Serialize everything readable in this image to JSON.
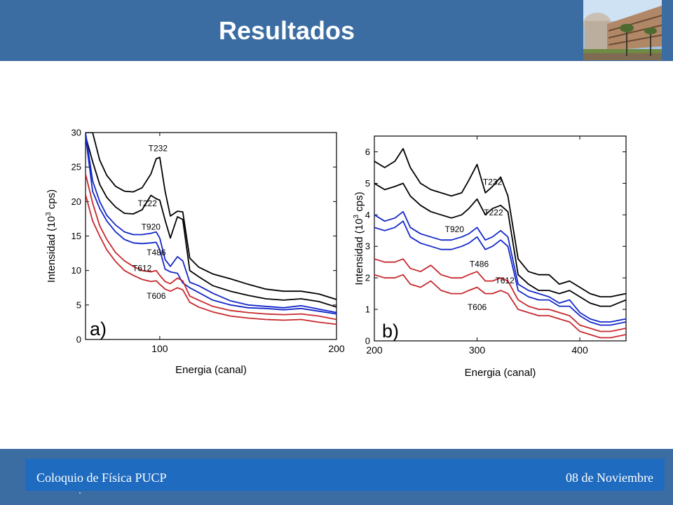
{
  "header": {
    "title": "Resultados",
    "photo_icon": "building-photo-icon"
  },
  "footer": {
    "left": "Coloquio de Física PUCP",
    "right": "08 de Noviembre"
  },
  "colors": {
    "header": "#3b6da3",
    "footer_bar": "#1f6bbf",
    "black_series": "#000000",
    "blue_series": "#1428c8",
    "red_series": "#c8282d"
  },
  "chart_data": [
    {
      "type": "line",
      "panel_label": "a)",
      "xlabel": "Energia (canal)",
      "ylabel_main": "Intensidad (10",
      "ylabel_sup": "3",
      "ylabel_end": " cps)",
      "xlim": [
        58,
        200
      ],
      "ylim": [
        0,
        30
      ],
      "xticks": [
        100,
        200
      ],
      "xtick_labels": [
        "100",
        "200"
      ],
      "yticks": [
        0,
        5,
        10,
        15,
        20,
        25,
        30
      ],
      "ytick_labels": [
        "0",
        "5",
        "10",
        "15",
        "20",
        "25",
        "30"
      ],
      "grid": false,
      "series": [
        {
          "name": "T232",
          "color": "#000000",
          "x": [
            58,
            62,
            66,
            70,
            75,
            80,
            85,
            90,
            95,
            98,
            100,
            103,
            106,
            110,
            113,
            117,
            122,
            130,
            140,
            150,
            160,
            170,
            180,
            190,
            200
          ],
          "y": [
            30,
            30,
            26,
            23.8,
            22.2,
            21.5,
            21.4,
            22,
            24,
            26.2,
            26.4,
            21.5,
            17.9,
            18.6,
            18.5,
            11.8,
            10.5,
            9.5,
            8.8,
            8,
            7.3,
            7,
            7,
            6.6,
            5.8
          ]
        },
        {
          "name": "T222",
          "color": "#000000",
          "x": [
            58,
            62,
            66,
            70,
            75,
            80,
            85,
            90,
            95,
            98,
            100,
            103,
            106,
            110,
            113,
            117,
            122,
            130,
            140,
            150,
            160,
            170,
            180,
            190,
            200
          ],
          "y": [
            29.5,
            25.8,
            22.5,
            20.6,
            19.2,
            18.3,
            18.2,
            18.8,
            20.9,
            20.4,
            20.2,
            17.3,
            14.7,
            17.8,
            17.4,
            10,
            9.1,
            7.8,
            7,
            6.4,
            5.9,
            5.7,
            5.9,
            5.5,
            4.7
          ]
        },
        {
          "name": "T920",
          "color": "#1428c8",
          "x": [
            58,
            62,
            66,
            70,
            75,
            80,
            85,
            90,
            95,
            98,
            100,
            103,
            106,
            110,
            113,
            117,
            122,
            130,
            140,
            150,
            160,
            170,
            180,
            190,
            200
          ],
          "y": [
            30,
            23,
            20,
            18,
            16.6,
            15.6,
            15.2,
            15.2,
            15.4,
            15.6,
            14.7,
            11.6,
            10.6,
            12,
            11.4,
            8.3,
            7.8,
            6.7,
            5.6,
            5,
            4.8,
            4.6,
            4.9,
            4.4,
            3.9
          ]
        },
        {
          "name": "T486",
          "color": "#1428c8",
          "x": [
            58,
            62,
            66,
            70,
            75,
            80,
            85,
            90,
            95,
            98,
            100,
            103,
            106,
            110,
            113,
            117,
            122,
            130,
            140,
            150,
            160,
            170,
            180,
            190,
            200
          ],
          "y": [
            29.5,
            21.5,
            19,
            17.2,
            15.6,
            14.5,
            14,
            13.9,
            14,
            14.1,
            13,
            10.2,
            9.8,
            9.6,
            8.2,
            7.5,
            6.8,
            5.7,
            5,
            4.6,
            4.5,
            4.3,
            4.5,
            4.1,
            3.7
          ]
        },
        {
          "name": "T612",
          "color": "#c8282d",
          "x": [
            58,
            62,
            66,
            70,
            75,
            80,
            85,
            90,
            95,
            98,
            100,
            103,
            106,
            110,
            113,
            117,
            122,
            130,
            140,
            150,
            160,
            170,
            180,
            190,
            200
          ],
          "y": [
            24,
            19.8,
            16.5,
            14.5,
            12.6,
            11.4,
            10.6,
            10,
            9.8,
            10,
            9.3,
            8.4,
            8.1,
            8.9,
            8.5,
            6.3,
            5.7,
            4.8,
            4.2,
            3.9,
            3.7,
            3.6,
            3.7,
            3.4,
            2.9
          ]
        },
        {
          "name": "T606",
          "color": "#c8282d",
          "x": [
            58,
            62,
            66,
            70,
            75,
            80,
            85,
            90,
            95,
            98,
            100,
            103,
            106,
            110,
            113,
            117,
            122,
            130,
            140,
            150,
            160,
            170,
            180,
            190,
            200
          ],
          "y": [
            21,
            17.2,
            15,
            13,
            11.3,
            10,
            9.3,
            8.7,
            8.4,
            8.5,
            8,
            7.3,
            7,
            7.5,
            7.2,
            5.4,
            4.7,
            4,
            3.4,
            3.1,
            2.9,
            2.8,
            2.9,
            2.5,
            2.2
          ]
        }
      ],
      "annotations": [
        {
          "text": "T232",
          "x": 99,
          "y": 27.3
        },
        {
          "text": "T222",
          "x": 93,
          "y": 19.3
        },
        {
          "text": "T920",
          "x": 95,
          "y": 15.9
        },
        {
          "text": "T486",
          "x": 98,
          "y": 12.2
        },
        {
          "text": "T612",
          "x": 90,
          "y": 9.9
        },
        {
          "text": "T606",
          "x": 98,
          "y": 5.9
        }
      ]
    },
    {
      "type": "line",
      "panel_label": "b)",
      "xlabel": "Energia (canal)",
      "ylabel_main": "Intensidad (10",
      "ylabel_sup": "3",
      "ylabel_end": " cps)",
      "xlim": [
        200,
        445
      ],
      "ylim": [
        0,
        6.5
      ],
      "xticks": [
        200,
        300,
        400
      ],
      "xtick_labels": [
        "200",
        "300",
        "400"
      ],
      "yticks": [
        0,
        1,
        2,
        3,
        4,
        5,
        6
      ],
      "ytick_labels": [
        "0",
        "1",
        "2",
        "3",
        "4",
        "5",
        "6"
      ],
      "grid": false,
      "series": [
        {
          "name": "T232",
          "color": "#000000",
          "x": [
            200,
            210,
            220,
            228,
            235,
            245,
            255,
            265,
            275,
            285,
            292,
            300,
            308,
            315,
            323,
            330,
            340,
            350,
            360,
            370,
            380,
            390,
            400,
            410,
            420,
            430,
            445
          ],
          "y": [
            5.7,
            5.5,
            5.7,
            6.1,
            5.5,
            5,
            4.8,
            4.7,
            4.6,
            4.7,
            5.1,
            5.6,
            4.7,
            4.9,
            5.2,
            4.6,
            2.6,
            2.2,
            2.1,
            2.1,
            1.8,
            1.9,
            1.7,
            1.5,
            1.4,
            1.4,
            1.5
          ]
        },
        {
          "name": "T222",
          "color": "#000000",
          "x": [
            200,
            210,
            220,
            228,
            235,
            245,
            255,
            265,
            275,
            285,
            292,
            300,
            308,
            315,
            323,
            330,
            340,
            350,
            360,
            370,
            380,
            390,
            400,
            410,
            420,
            430,
            445
          ],
          "y": [
            5,
            4.8,
            4.9,
            5,
            4.6,
            4.3,
            4.1,
            4,
            3.9,
            4,
            4.2,
            4.5,
            4,
            4.2,
            4.3,
            4.1,
            2.1,
            1.8,
            1.6,
            1.6,
            1.5,
            1.6,
            1.4,
            1.2,
            1.1,
            1.1,
            1.3
          ]
        },
        {
          "name": "T920",
          "color": "#1428c8",
          "x": [
            200,
            210,
            220,
            228,
            235,
            245,
            255,
            265,
            275,
            285,
            292,
            300,
            308,
            315,
            323,
            330,
            340,
            350,
            360,
            370,
            380,
            390,
            400,
            410,
            420,
            430,
            445
          ],
          "y": [
            4,
            3.8,
            3.9,
            4.1,
            3.6,
            3.4,
            3.3,
            3.2,
            3.2,
            3.3,
            3.4,
            3.6,
            3.2,
            3.3,
            3.5,
            3.3,
            1.8,
            1.6,
            1.5,
            1.4,
            1.2,
            1.3,
            0.9,
            0.7,
            0.6,
            0.6,
            0.7
          ]
        },
        {
          "name": "T486",
          "color": "#1428c8",
          "x": [
            200,
            210,
            220,
            228,
            235,
            245,
            255,
            265,
            275,
            285,
            292,
            300,
            308,
            315,
            323,
            330,
            340,
            350,
            360,
            370,
            380,
            390,
            400,
            410,
            420,
            430,
            445
          ],
          "y": [
            3.6,
            3.5,
            3.6,
            3.8,
            3.3,
            3.1,
            3,
            2.9,
            2.9,
            3,
            3.1,
            3.3,
            2.9,
            3,
            3.2,
            3,
            1.6,
            1.4,
            1.3,
            1.3,
            1.1,
            1.1,
            0.8,
            0.6,
            0.5,
            0.5,
            0.6
          ]
        },
        {
          "name": "T612",
          "color": "#c8282d",
          "x": [
            200,
            210,
            220,
            228,
            235,
            245,
            255,
            265,
            275,
            285,
            292,
            300,
            308,
            315,
            323,
            330,
            340,
            350,
            360,
            370,
            380,
            390,
            400,
            410,
            420,
            430,
            445
          ],
          "y": [
            2.6,
            2.5,
            2.5,
            2.6,
            2.3,
            2.2,
            2.4,
            2.1,
            2,
            2,
            2.1,
            2.2,
            1.9,
            1.9,
            2,
            1.9,
            1.3,
            1.1,
            1,
            1,
            0.9,
            0.8,
            0.5,
            0.4,
            0.3,
            0.3,
            0.4
          ]
        },
        {
          "name": "T606",
          "color": "#c8282d",
          "x": [
            200,
            210,
            220,
            228,
            235,
            245,
            255,
            265,
            275,
            285,
            292,
            300,
            308,
            315,
            323,
            330,
            340,
            350,
            360,
            370,
            380,
            390,
            400,
            410,
            420,
            430,
            445
          ],
          "y": [
            2.1,
            2,
            2,
            2.1,
            1.8,
            1.7,
            1.9,
            1.6,
            1.5,
            1.5,
            1.6,
            1.7,
            1.5,
            1.5,
            1.6,
            1.5,
            1,
            0.9,
            0.8,
            0.8,
            0.7,
            0.6,
            0.3,
            0.2,
            0.1,
            0.1,
            0.2
          ]
        }
      ],
      "annotations": [
        {
          "text": "T232",
          "x": 315,
          "y": 4.95
        },
        {
          "text": "T222",
          "x": 316,
          "y": 3.98
        },
        {
          "text": "T920",
          "x": 278,
          "y": 3.45
        },
        {
          "text": "T486",
          "x": 302,
          "y": 2.35
        },
        {
          "text": "T612",
          "x": 327,
          "y": 1.82
        },
        {
          "text": "T606",
          "x": 300,
          "y": 0.98
        }
      ]
    }
  ]
}
